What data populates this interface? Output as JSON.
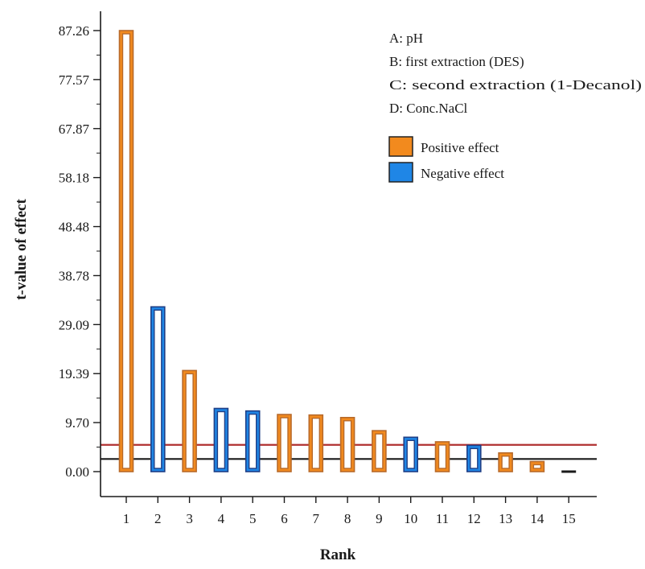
{
  "chart_data": {
    "type": "bar",
    "xlabel": "Rank",
    "ylabel": "t-value of effect",
    "ylim": [
      0,
      90
    ],
    "yticks": [
      "0.00",
      "9.70",
      "19.39",
      "29.09",
      "38.78",
      "48.48",
      "58.18",
      "67.87",
      "77.57",
      "87.26"
    ],
    "ytick_values": [
      0,
      9.7,
      19.39,
      29.09,
      38.78,
      48.48,
      58.18,
      67.87,
      77.57,
      87.26
    ],
    "categories": [
      "1",
      "2",
      "3",
      "4",
      "5",
      "6",
      "7",
      "8",
      "9",
      "10",
      "11",
      "12",
      "13",
      "14",
      "15"
    ],
    "values": [
      87.26,
      32.6,
      20.0,
      12.5,
      12.0,
      11.3,
      11.2,
      10.7,
      8.1,
      6.8,
      5.9,
      5.2,
      3.7,
      2.0,
      0.3
    ],
    "effects": [
      "positive",
      "negative",
      "positive",
      "negative",
      "negative",
      "positive",
      "positive",
      "positive",
      "positive",
      "negative",
      "positive",
      "negative",
      "positive",
      "positive",
      "none"
    ],
    "reference_lines": [
      {
        "value": 5.3,
        "color": "#b03030"
      },
      {
        "value": 2.5,
        "color": "#1a1a1a"
      }
    ],
    "factor_key": [
      "A: pH",
      "B: first extraction (DES)",
      "C: second extraction (1-Decanol)",
      "D: Conc.NaCl"
    ],
    "legend": [
      {
        "label": "Positive effect",
        "color": "#f28a1e",
        "text_color": "#f07f2a"
      },
      {
        "label": "Negative effect",
        "color": "#1f86e6",
        "text_color": "#3b4fbf"
      }
    ],
    "legend_position": "top-right",
    "colors": {
      "positive_stroke": "#b86a2a",
      "negative_stroke": "#1f3f86",
      "axis": "#1a1a1a"
    }
  }
}
